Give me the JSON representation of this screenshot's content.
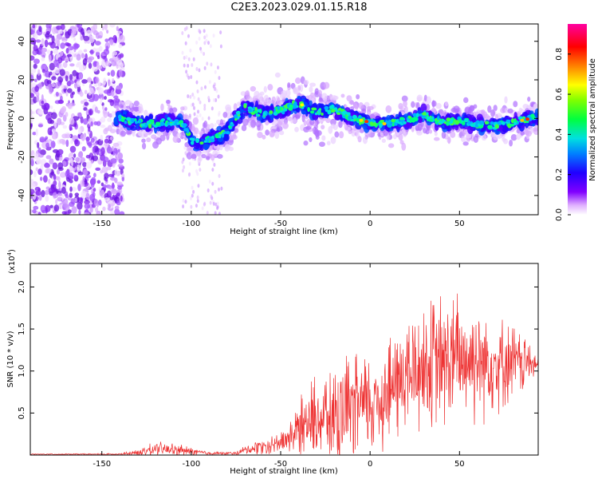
{
  "title": "C2E3.2023.029.01.15.R18",
  "colors": {
    "signal": "#ee3333",
    "frame": "#000000",
    "background": "#ffffff"
  },
  "chart_data": [
    {
      "type": "heatmap",
      "title": "C2E3.2023.029.01.15.R18",
      "xlabel": "Height of straight line (km)",
      "ylabel": "Frequency (Hz)",
      "xlim": [
        -190,
        94
      ],
      "ylim": [
        -50,
        49
      ],
      "xticks": [
        -150,
        -100,
        -50,
        0,
        50
      ],
      "yticks": [
        -40,
        -20,
        0,
        20,
        40
      ],
      "colorbar": {
        "label": "Normalized spectral amplitude",
        "range": [
          0,
          0.95
        ],
        "ticks": [
          "0.0",
          "0.2",
          "0.4",
          "0.6",
          "0.8"
        ],
        "colormap": "rainbow (white-violet-blue-cyan-green-yellow-red-magenta)"
      },
      "ridge": {
        "description": "main spectral ridge near 0 Hz",
        "x": [
          -140,
          -130,
          -120,
          -110,
          -104,
          -100,
          -95,
          -90,
          -85,
          -80,
          -75,
          -70,
          -60,
          -50,
          -40,
          -30,
          -20,
          -10,
          0,
          10,
          20,
          30,
          40,
          50,
          60,
          70,
          80,
          90
        ],
        "y": [
          0,
          -2,
          -3,
          -1,
          -3,
          -12,
          -13,
          -11,
          -9,
          -7,
          0,
          6,
          2,
          4,
          8,
          3,
          5,
          0,
          -2,
          -3,
          -1,
          2,
          -2,
          -1,
          -3,
          -4,
          -2,
          0
        ]
      }
    },
    {
      "type": "line",
      "xlabel": "Height of straight line (km)",
      "ylabel": "SNR (10 * v/v)",
      "yscale_label": "(x10",
      "yscale_exp": "4",
      "xlim": [
        -190,
        94
      ],
      "ylim": [
        0,
        2.28
      ],
      "xticks": [
        -150,
        -100,
        -50,
        0,
        50
      ],
      "yticks": [
        0.5,
        1.0,
        1.5,
        2.0
      ],
      "ytick_labels": [
        "0.5",
        "1.0",
        "1.5",
        "2.0"
      ],
      "color": "#ee3333",
      "envelope": {
        "description": "approximate mean level and spread of the noisy trace (x10^4)",
        "x": [
          -190,
          -140,
          -130,
          -120,
          -110,
          -100,
          -90,
          -75,
          -70,
          -60,
          -50,
          -40,
          -30,
          -20,
          -10,
          0,
          10,
          20,
          30,
          40,
          50,
          60,
          70,
          80,
          90,
          94
        ],
        "mean": [
          0.01,
          0.01,
          0.03,
          0.07,
          0.06,
          0.04,
          0.02,
          0.02,
          0.06,
          0.1,
          0.15,
          0.3,
          0.45,
          0.45,
          0.55,
          0.6,
          0.75,
          0.95,
          1.05,
          1.1,
          1.15,
          1.15,
          1.1,
          1.1,
          1.1,
          1.05
        ],
        "spread": [
          0.005,
          0.01,
          0.04,
          0.08,
          0.08,
          0.05,
          0.02,
          0.02,
          0.05,
          0.1,
          0.12,
          0.3,
          0.5,
          0.55,
          0.6,
          0.6,
          0.65,
          0.7,
          0.75,
          0.8,
          0.75,
          0.7,
          0.55,
          0.45,
          0.25,
          0.1
        ]
      }
    }
  ]
}
